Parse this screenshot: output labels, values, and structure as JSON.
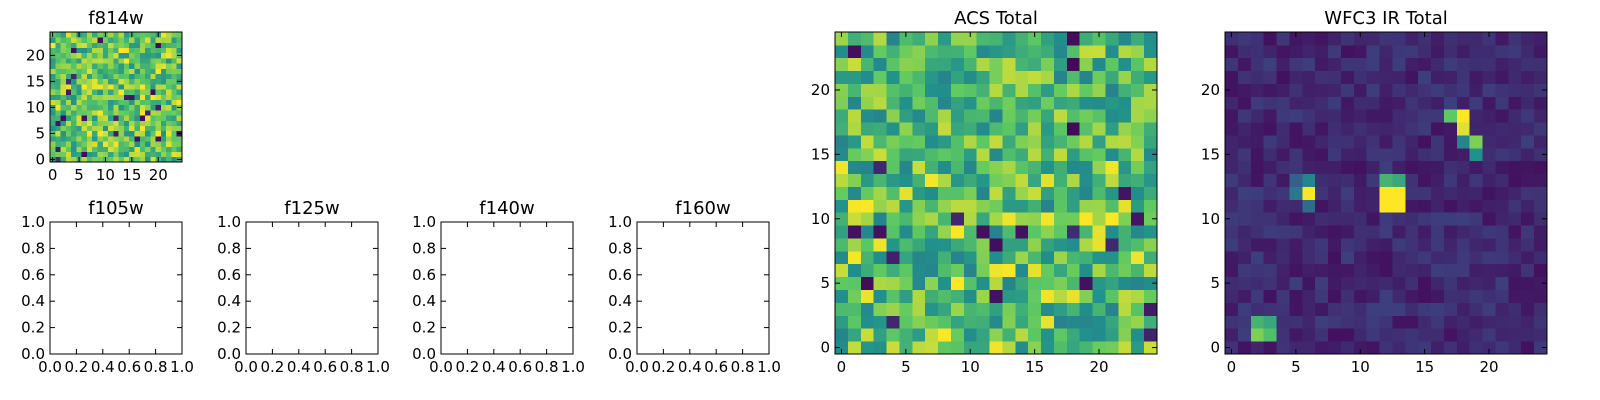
{
  "figure": {
    "background": "#ffffff",
    "colormap": "viridis",
    "colormap_stops": [
      "#440154",
      "#3b528b",
      "#21918c",
      "#5ec962",
      "#fde725"
    ]
  },
  "chart_data": [
    {
      "id": "f814w",
      "type": "heatmap",
      "title": "f814w",
      "grid_size": [
        25,
        25
      ],
      "xlim": [
        0,
        24
      ],
      "ylim": [
        0,
        24
      ],
      "x_ticks": [
        0,
        5,
        10,
        15,
        20
      ],
      "y_ticks": [
        0,
        5,
        10,
        15,
        20
      ],
      "x_tick_labels": [
        "0",
        "5",
        "10",
        "15",
        "20"
      ],
      "y_tick_labels": [
        "0",
        "5",
        "10",
        "15",
        "20"
      ],
      "value_range": [
        0,
        1
      ],
      "background_level": 0.72,
      "noise": 0.22,
      "seed": 814,
      "values": [],
      "peaks": []
    },
    {
      "id": "f105w",
      "type": "empty",
      "title": "f105w",
      "xlim": [
        0,
        1
      ],
      "ylim": [
        0,
        1
      ],
      "x_ticks": [
        0,
        0.2,
        0.4,
        0.6,
        0.8,
        1.0
      ],
      "y_ticks": [
        0,
        0.2,
        0.4,
        0.6,
        0.8,
        1.0
      ],
      "x_tick_labels": [
        "0.0",
        "0.2",
        "0.4",
        "0.6",
        "0.8",
        "1.0"
      ],
      "y_tick_labels": [
        "0.0",
        "0.2",
        "0.4",
        "0.6",
        "0.8",
        "1.0"
      ]
    },
    {
      "id": "f125w",
      "type": "empty",
      "title": "f125w",
      "xlim": [
        0,
        1
      ],
      "ylim": [
        0,
        1
      ],
      "x_ticks": [
        0,
        0.2,
        0.4,
        0.6,
        0.8,
        1.0
      ],
      "y_ticks": [
        0,
        0.2,
        0.4,
        0.6,
        0.8,
        1.0
      ],
      "x_tick_labels": [
        "0.0",
        "0.2",
        "0.4",
        "0.6",
        "0.8",
        "1.0"
      ],
      "y_tick_labels": [
        "0.0",
        "0.2",
        "0.4",
        "0.6",
        "0.8",
        "1.0"
      ]
    },
    {
      "id": "f140w",
      "type": "empty",
      "title": "f140w",
      "xlim": [
        0,
        1
      ],
      "ylim": [
        0,
        1
      ],
      "x_ticks": [
        0,
        0.2,
        0.4,
        0.6,
        0.8,
        1.0
      ],
      "y_ticks": [
        0,
        0.2,
        0.4,
        0.6,
        0.8,
        1.0
      ],
      "x_tick_labels": [
        "0.0",
        "0.2",
        "0.4",
        "0.6",
        "0.8",
        "1.0"
      ],
      "y_tick_labels": [
        "0.0",
        "0.2",
        "0.4",
        "0.6",
        "0.8",
        "1.0"
      ]
    },
    {
      "id": "f160w",
      "type": "empty",
      "title": "f160w",
      "xlim": [
        0,
        1
      ],
      "ylim": [
        0,
        1
      ],
      "x_ticks": [
        0,
        0.2,
        0.4,
        0.6,
        0.8,
        1.0
      ],
      "y_ticks": [
        0,
        0.2,
        0.4,
        0.6,
        0.8,
        1.0
      ],
      "x_tick_labels": [
        "0.0",
        "0.2",
        "0.4",
        "0.6",
        "0.8",
        "1.0"
      ],
      "y_tick_labels": [
        "0.0",
        "0.2",
        "0.4",
        "0.6",
        "0.8",
        "1.0"
      ]
    },
    {
      "id": "acs-total",
      "type": "heatmap",
      "title": "ACS Total",
      "grid_size": [
        25,
        25
      ],
      "xlim": [
        0,
        24
      ],
      "ylim": [
        0,
        24
      ],
      "x_ticks": [
        0,
        5,
        10,
        15,
        20
      ],
      "y_ticks": [
        0,
        5,
        10,
        15,
        20
      ],
      "x_tick_labels": [
        "0",
        "5",
        "10",
        "15",
        "20"
      ],
      "y_tick_labels": [
        "0",
        "5",
        "10",
        "15",
        "20"
      ],
      "value_range": [
        0,
        1
      ],
      "background_level": 0.68,
      "noise": 0.24,
      "seed": 1234,
      "values": [],
      "peaks": []
    },
    {
      "id": "wfc3-ir-total",
      "type": "heatmap",
      "title": "WFC3 IR Total",
      "grid_size": [
        25,
        25
      ],
      "xlim": [
        0,
        24
      ],
      "ylim": [
        0,
        24
      ],
      "x_ticks": [
        0,
        5,
        10,
        15,
        20
      ],
      "y_ticks": [
        0,
        5,
        10,
        15,
        20
      ],
      "x_tick_labels": [
        "0",
        "5",
        "10",
        "15",
        "20"
      ],
      "y_tick_labels": [
        "0",
        "5",
        "10",
        "15",
        "20"
      ],
      "value_range": [
        0,
        1
      ],
      "background_level": 0.12,
      "noise": 0.07,
      "seed": 3,
      "values": [],
      "peaks": [
        {
          "x": 18,
          "y": 18,
          "value": 1.0
        },
        {
          "x": 18,
          "y": 17,
          "value": 0.95
        },
        {
          "x": 17,
          "y": 18,
          "value": 0.75
        },
        {
          "x": 19,
          "y": 16,
          "value": 0.8
        },
        {
          "x": 19,
          "y": 15,
          "value": 0.5
        },
        {
          "x": 18,
          "y": 16,
          "value": 0.45
        },
        {
          "x": 12,
          "y": 12,
          "value": 1.0
        },
        {
          "x": 13,
          "y": 12,
          "value": 1.0
        },
        {
          "x": 12,
          "y": 11,
          "value": 1.0
        },
        {
          "x": 13,
          "y": 11,
          "value": 1.0
        },
        {
          "x": 12,
          "y": 13,
          "value": 0.65
        },
        {
          "x": 13,
          "y": 13,
          "value": 0.6
        },
        {
          "x": 6,
          "y": 12,
          "value": 1.0
        },
        {
          "x": 5,
          "y": 12,
          "value": 0.4
        },
        {
          "x": 6,
          "y": 13,
          "value": 0.45
        },
        {
          "x": 5,
          "y": 13,
          "value": 0.3
        },
        {
          "x": 6,
          "y": 11,
          "value": 0.35
        },
        {
          "x": 2,
          "y": 1,
          "value": 0.8
        },
        {
          "x": 3,
          "y": 1,
          "value": 0.7
        },
        {
          "x": 2,
          "y": 2,
          "value": 0.65
        },
        {
          "x": 3,
          "y": 2,
          "value": 0.6
        }
      ]
    }
  ]
}
